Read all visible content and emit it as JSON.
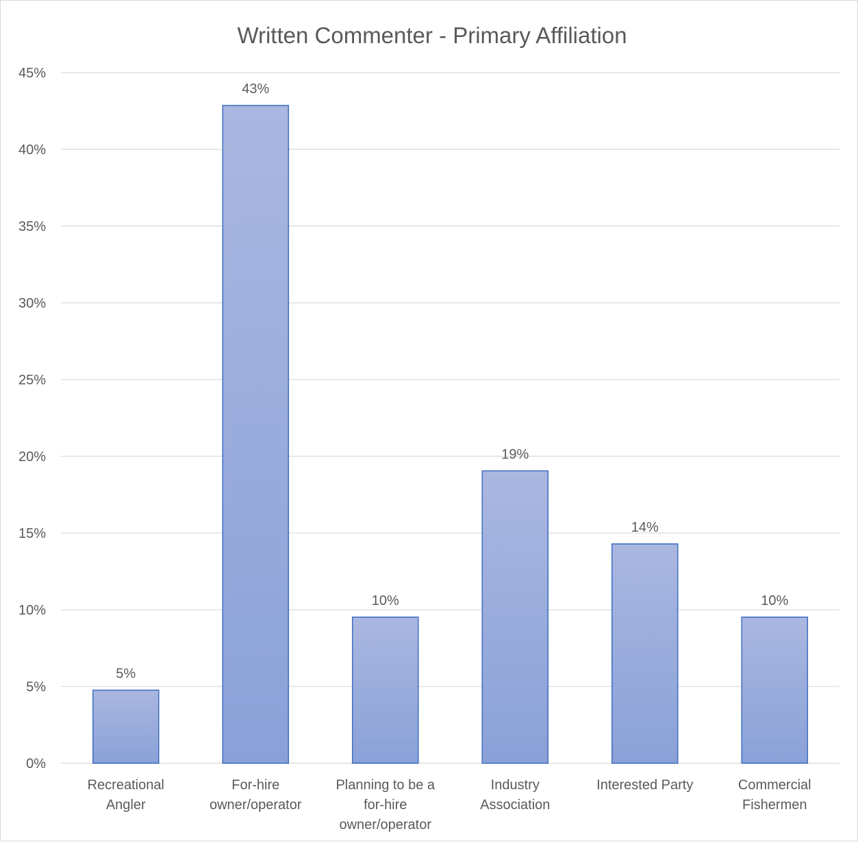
{
  "chart_data": {
    "type": "bar",
    "title": "Written Commenter - Primary Affiliation",
    "xlabel": "",
    "ylabel": "",
    "categories": [
      [
        "Recreational",
        "Angler"
      ],
      [
        "For-hire",
        "owner/operator"
      ],
      [
        "Planning to be a",
        "for-hire",
        "owner/operator"
      ],
      [
        "Industry",
        "Association"
      ],
      [
        "Interested Party"
      ],
      [
        "Commercial",
        "Fishermen"
      ]
    ],
    "values": [
      4.76,
      42.86,
      9.52,
      19.05,
      14.29,
      9.52
    ],
    "data_labels": [
      "5%",
      "43%",
      "10%",
      "19%",
      "14%",
      "10%"
    ],
    "ylim": [
      0,
      45
    ],
    "yticks": [
      0,
      5,
      10,
      15,
      20,
      25,
      30,
      35,
      40,
      45
    ],
    "ytick_labels": [
      "0%",
      "5%",
      "10%",
      "15%",
      "20%",
      "25%",
      "30%",
      "35%",
      "40%",
      "45%"
    ],
    "grid": true,
    "legend": "none",
    "colors": {
      "bar_fill_top": "#aab7e0",
      "bar_fill_bottom": "#8aa1d8",
      "bar_stroke": "#4472c4",
      "grid": "#d9d9d9",
      "text": "#595959"
    }
  }
}
